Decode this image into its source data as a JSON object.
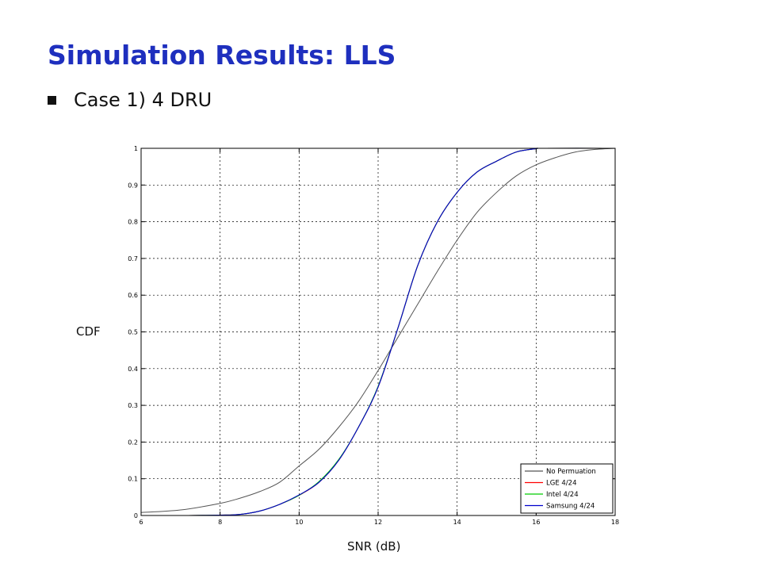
{
  "slide": {
    "title": "Simulation Results: LLS",
    "bullet": "Case 1) 4 DRU"
  },
  "chart_data": {
    "type": "line",
    "title": "",
    "xlabel": "SNR (dB)",
    "ylabel": "CDF",
    "xlim": [
      6,
      18
    ],
    "ylim": [
      0,
      1
    ],
    "xticks": [
      "6",
      "8",
      "10",
      "12",
      "14",
      "16",
      "18"
    ],
    "yticks": [
      "0",
      "0.1",
      "0.2",
      "0.3",
      "0.4",
      "0.5",
      "0.6",
      "0.7",
      "0.8",
      "0.9",
      "1"
    ],
    "grid": true,
    "legend_position": "bottom-right",
    "series": [
      {
        "name": "No Permuation",
        "color": "#555555",
        "x": [
          6.0,
          7.0,
          8.0,
          8.5,
          9.0,
          9.5,
          10.0,
          10.5,
          11.0,
          11.5,
          12.0,
          12.5,
          13.0,
          13.5,
          14.0,
          14.5,
          15.0,
          15.5,
          16.0,
          16.5,
          17.0,
          17.5,
          18.0
        ],
        "values": [
          0.008,
          0.015,
          0.033,
          0.047,
          0.065,
          0.09,
          0.135,
          0.18,
          0.24,
          0.31,
          0.395,
          0.485,
          0.575,
          0.665,
          0.75,
          0.825,
          0.88,
          0.925,
          0.955,
          0.975,
          0.99,
          0.997,
          1.0
        ]
      },
      {
        "name": "LGE 4/24",
        "color": "#ff0000",
        "x": [
          7.2,
          8.0,
          8.5,
          9.0,
          9.5,
          10.0,
          10.5,
          11.0,
          11.5,
          12.0,
          12.5,
          13.0,
          13.5,
          14.0,
          14.5,
          15.0,
          15.5,
          16.0,
          16.2
        ],
        "values": [
          0.0,
          0.001,
          0.003,
          0.012,
          0.03,
          0.055,
          0.09,
          0.15,
          0.24,
          0.35,
          0.51,
          0.68,
          0.8,
          0.88,
          0.935,
          0.965,
          0.99,
          0.999,
          1.0
        ]
      },
      {
        "name": "Intel 4/24",
        "color": "#00cc00",
        "x": [
          7.2,
          8.0,
          8.5,
          9.0,
          9.5,
          10.0,
          10.5,
          11.0,
          11.5,
          12.0,
          12.5,
          13.0,
          13.5,
          14.0,
          14.5,
          15.0,
          15.5,
          16.0,
          16.2
        ],
        "values": [
          0.0,
          0.001,
          0.003,
          0.012,
          0.03,
          0.055,
          0.092,
          0.152,
          0.24,
          0.352,
          0.51,
          0.68,
          0.8,
          0.88,
          0.935,
          0.965,
          0.99,
          0.999,
          1.0
        ]
      },
      {
        "name": "Samsung 4/24",
        "color": "#0000cc",
        "x": [
          7.2,
          8.0,
          8.5,
          9.0,
          9.5,
          10.0,
          10.5,
          11.0,
          11.5,
          12.0,
          12.5,
          13.0,
          13.5,
          14.0,
          14.5,
          15.0,
          15.5,
          16.0,
          16.2
        ],
        "values": [
          0.0,
          0.001,
          0.003,
          0.012,
          0.03,
          0.056,
          0.09,
          0.15,
          0.24,
          0.35,
          0.51,
          0.68,
          0.8,
          0.88,
          0.935,
          0.965,
          0.99,
          0.999,
          1.0
        ]
      }
    ]
  }
}
